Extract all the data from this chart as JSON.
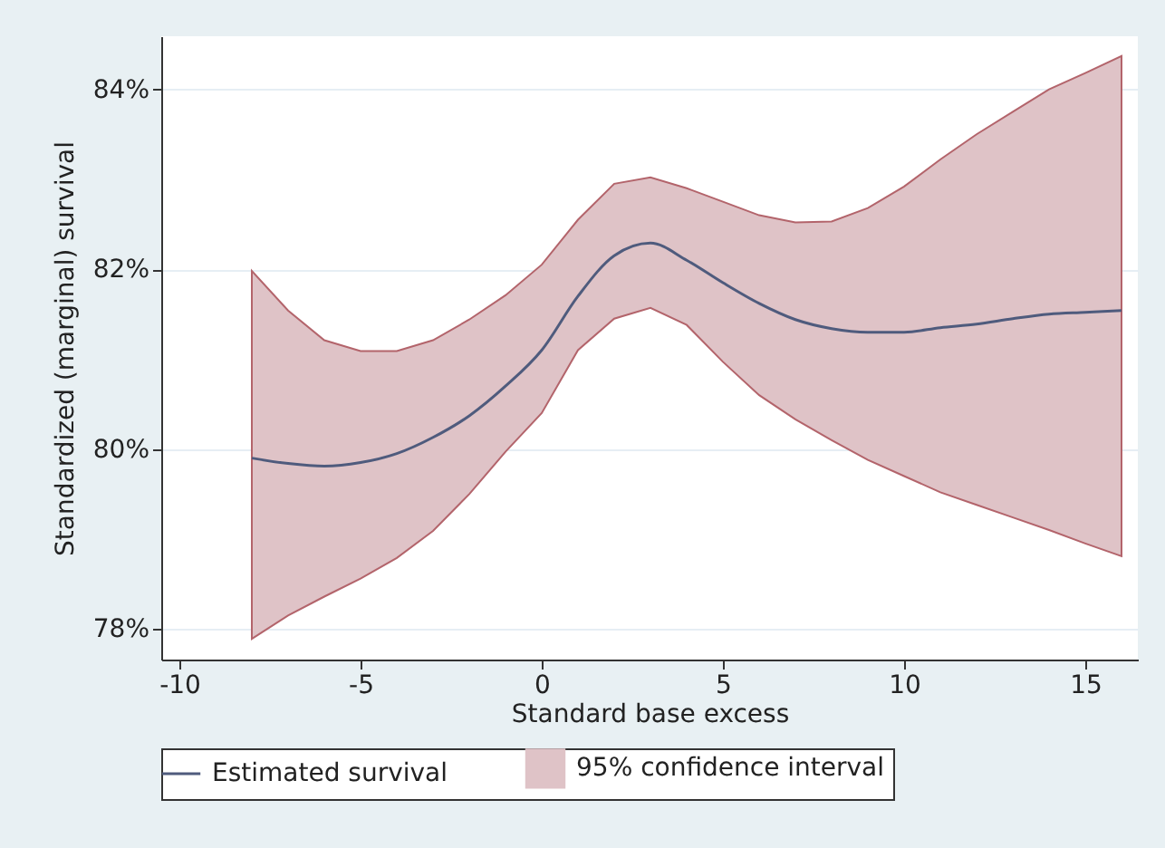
{
  "chart_data": {
    "type": "line",
    "xlabel": "Standard base excess",
    "ylabel": "Standardized (marginal) survival",
    "x": [
      -8,
      -7,
      -6,
      -5,
      -4,
      -3,
      -2,
      -1,
      0,
      1,
      2,
      3,
      4,
      5,
      6,
      7,
      8,
      9,
      10,
      11,
      12,
      13,
      14,
      15,
      16
    ],
    "series": [
      {
        "name": "Estimated survival",
        "color": "#4f5b7d",
        "values": [
          79.9,
          79.84,
          79.81,
          79.85,
          79.95,
          80.13,
          80.37,
          80.7,
          81.1,
          81.7,
          82.15,
          82.29,
          82.1,
          81.85,
          81.62,
          81.44,
          81.34,
          81.3,
          81.3,
          81.35,
          81.39,
          81.45,
          81.5,
          81.52,
          81.54
        ],
        "upper": [
          81.98,
          81.54,
          81.21,
          81.09,
          81.09,
          81.21,
          81.44,
          81.71,
          82.05,
          82.55,
          82.95,
          83.02,
          82.9,
          82.75,
          82.6,
          82.52,
          82.53,
          82.68,
          82.92,
          83.22,
          83.5,
          83.75,
          84.0,
          84.18,
          84.37
        ],
        "lower": [
          77.89,
          78.15,
          78.36,
          78.56,
          78.79,
          79.09,
          79.5,
          79.97,
          80.4,
          81.1,
          81.45,
          81.57,
          81.38,
          80.97,
          80.6,
          80.33,
          80.1,
          79.88,
          79.7,
          79.52,
          79.38,
          79.24,
          79.1,
          78.95,
          78.81
        ]
      }
    ],
    "annotations": [
      "95% confidence interval"
    ],
    "xlim": [
      -10.5,
      16.45
    ],
    "xticks": [
      -10,
      -5,
      0,
      5,
      10,
      15
    ],
    "ylim": [
      77.66,
      84.59
    ],
    "yticks": [
      {
        "value": 78,
        "label": "78%"
      },
      {
        "value": 80,
        "label": "80%"
      },
      {
        "value": 82,
        "label": "82%"
      },
      {
        "value": 84,
        "label": "84%"
      }
    ],
    "grid": "y",
    "legend": "bottom"
  }
}
